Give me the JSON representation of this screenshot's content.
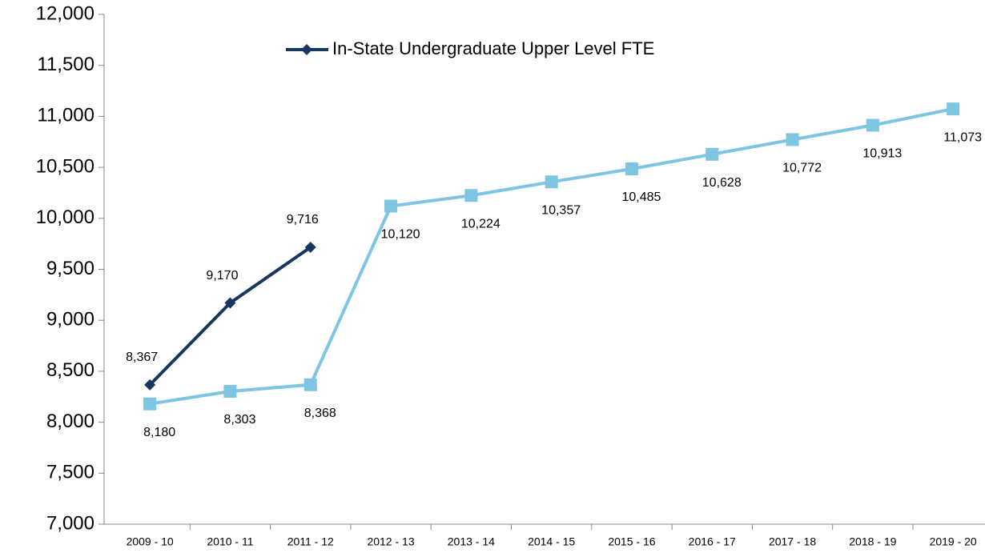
{
  "chart_data": {
    "type": "line",
    "categories": [
      "2009 - 10",
      "2010 - 11",
      "2011 - 12",
      "2012 - 13",
      "2013 - 14",
      "2014 - 15",
      "2015 - 16",
      "2016 - 17",
      "2017 - 18",
      "2018 - 19",
      "2019 - 20"
    ],
    "series": [
      {
        "color": "#7ec4e3",
        "marker": "square",
        "values": [
          8180,
          8303,
          8368,
          10120,
          10224,
          10357,
          10485,
          10628,
          10772,
          10913,
          11073
        ],
        "value_labels": [
          "8,180",
          "8,303",
          "8,368",
          "10,120",
          "10,224",
          "10,357",
          "10,485",
          "10,628",
          "10,772",
          "10,913",
          "11,073"
        ]
      },
      {
        "name": "In-State Undergraduate Upper Level FTE",
        "color": "#17375e",
        "marker": "diamond",
        "values": [
          8367,
          9170,
          9716,
          null,
          null,
          null,
          null,
          null,
          null,
          null,
          null
        ],
        "value_labels": [
          "8,367",
          "9,170",
          "9,716",
          null,
          null,
          null,
          null,
          null,
          null,
          null,
          null
        ]
      }
    ],
    "ylim": [
      7000,
      12000
    ],
    "yticks": [
      {
        "value": 7000,
        "label": "7,000"
      },
      {
        "value": 7500,
        "label": "7,500"
      },
      {
        "value": 8000,
        "label": "8,000"
      },
      {
        "value": 8500,
        "label": "8,500"
      },
      {
        "value": 9000,
        "label": "9,000"
      },
      {
        "value": 9500,
        "label": "9,500"
      },
      {
        "value": 10000,
        "label": "10,000"
      },
      {
        "value": 10500,
        "label": "10,500"
      },
      {
        "value": 11000,
        "label": "11,000"
      },
      {
        "value": 11500,
        "label": "11,500"
      },
      {
        "value": 12000,
        "label": "12,000"
      }
    ],
    "grid": false,
    "legend": "top"
  }
}
